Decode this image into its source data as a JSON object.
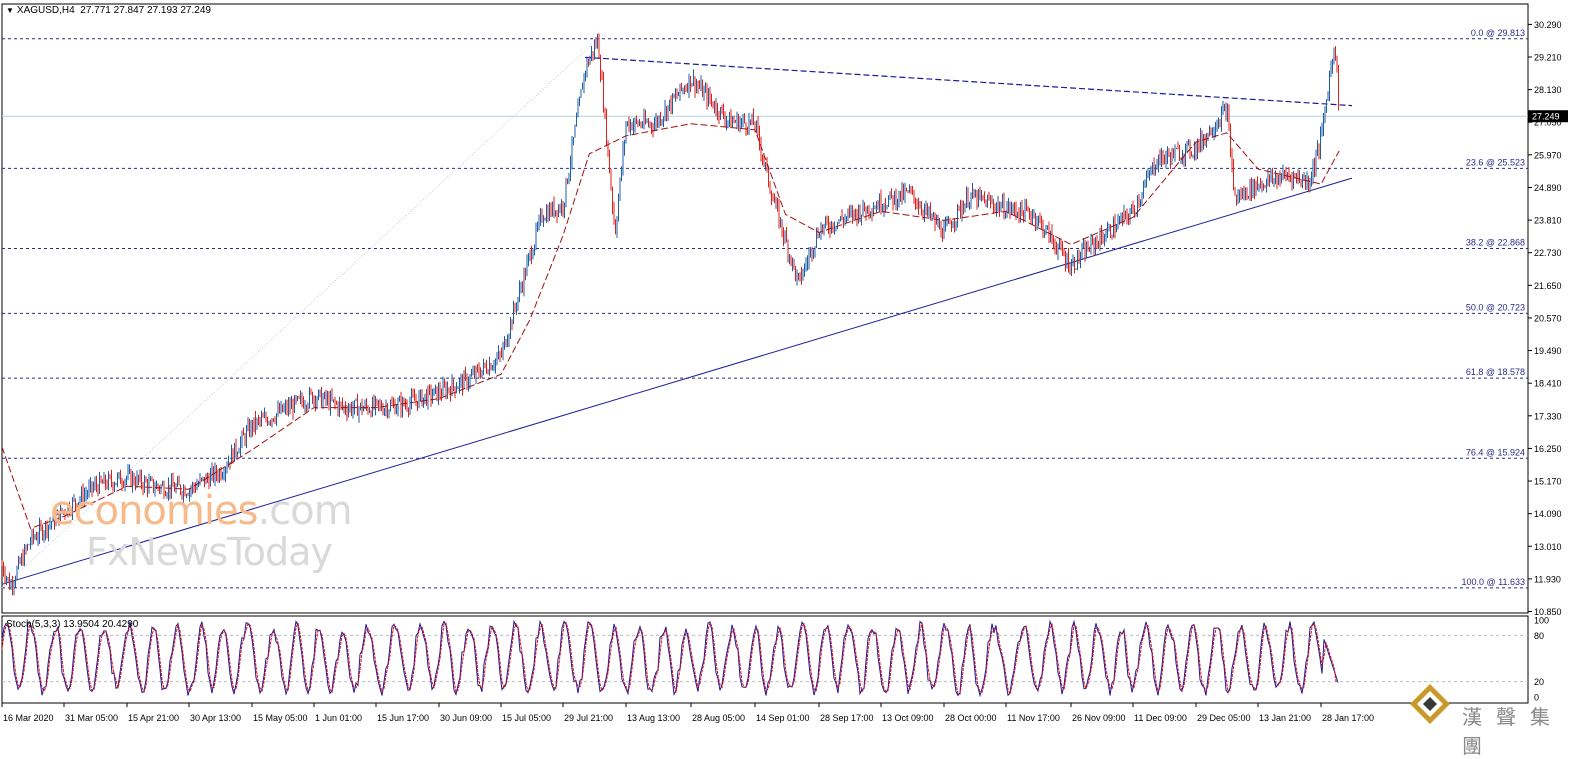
{
  "header": {
    "symbol": "XAGUSD,H4",
    "ohlc": "27.771 27.847 27.193 27.249",
    "last_price_label": "27.249"
  },
  "indicator": {
    "label": "Stoch(5,3,3) 13.9504 20.4290"
  },
  "watermark": {
    "line1_highlight": "economies",
    "line1_rest": ".com",
    "line2": "FxNewsToday"
  },
  "logo": {
    "text": "漢聲集團"
  },
  "colors": {
    "up_candle": "#1f5fa8",
    "down_candle": "#e0201b",
    "moving_average": "#a01010",
    "trendline": "#1a1a9a",
    "fib_line": "#2a2a8a",
    "stoch_main": "#1a1a9a",
    "stoch_signal": "#d0101a",
    "current_price_line": "#b8cfe0"
  },
  "chart_data": {
    "type": "candlestick",
    "symbol": "XAGUSD",
    "timeframe": "H4",
    "y_ticks": [
      "30.290",
      "29.210",
      "28.130",
      "27.050",
      "25.970",
      "24.890",
      "23.810",
      "22.730",
      "21.650",
      "20.570",
      "19.490",
      "18.410",
      "17.330",
      "16.250",
      "15.170",
      "14.090",
      "13.010",
      "11.930",
      "10.850"
    ],
    "ylim": [
      10.8,
      30.7
    ],
    "x_ticks": [
      "16 Mar 2020",
      "31 Mar 05:00",
      "15 Apr 21:00",
      "30 Apr 13:00",
      "15 May 05:00",
      "1 Jun 01:00",
      "15 Jun 17:00",
      "30 Jun 09:00",
      "15 Jul 05:00",
      "29 Jul 21:00",
      "13 Aug 13:00",
      "28 Aug 05:00",
      "14 Sep 01:00",
      "28 Sep 17:00",
      "13 Oct 09:00",
      "28 Oct 00:00",
      "11 Nov 17:00",
      "26 Nov 09:00",
      "11 Dec 09:00",
      "29 Dec 05:00",
      "13 Jan 21:00",
      "28 Jan 17:00"
    ],
    "current_price": 27.249,
    "fibonacci_levels": [
      {
        "label": "0.0 @ 29.813",
        "value": 29.813
      },
      {
        "label": "23.6 @ 25.523",
        "value": 25.523
      },
      {
        "label": "38.2 @ 22.868",
        "value": 22.868
      },
      {
        "label": "50.0 @ 20.723",
        "value": 20.723
      },
      {
        "label": "61.8 @ 18.578",
        "value": 18.578
      },
      {
        "label": "76.4 @ 15.924",
        "value": 15.924
      },
      {
        "label": "100.0 @ 11.633",
        "value": 11.633
      }
    ],
    "price_path": [
      {
        "t": "16 Mar 2020",
        "v": 12.4
      },
      {
        "t": "18 Mar 2020",
        "v": 11.7
      },
      {
        "t": "23 Mar 2020",
        "v": 13.2
      },
      {
        "t": "31 Mar 05:00",
        "v": 14.2
      },
      {
        "t": "8 Apr 2020",
        "v": 15.0
      },
      {
        "t": "15 Apr 21:00",
        "v": 15.3
      },
      {
        "t": "22 Apr 2020",
        "v": 15.0
      },
      {
        "t": "30 Apr 13:00",
        "v": 14.9
      },
      {
        "t": "8 May 2020",
        "v": 15.5
      },
      {
        "t": "15 May 05:00",
        "v": 17.0
      },
      {
        "t": "22 May 2020",
        "v": 17.4
      },
      {
        "t": "1 Jun 01:00",
        "v": 18.0
      },
      {
        "t": "8 Jun 2020",
        "v": 17.6
      },
      {
        "t": "15 Jun 17:00",
        "v": 17.6
      },
      {
        "t": "22 Jun 2020",
        "v": 17.7
      },
      {
        "t": "30 Jun 09:00",
        "v": 18.1
      },
      {
        "t": "7 Jul 2020",
        "v": 18.5
      },
      {
        "t": "15 Jul 05:00",
        "v": 19.3
      },
      {
        "t": "22 Jul 2020",
        "v": 22.6
      },
      {
        "t": "25 Jul 2020",
        "v": 24.0
      },
      {
        "t": "29 Jul 21:00",
        "v": 24.3
      },
      {
        "t": "4 Aug 2020",
        "v": 28.8
      },
      {
        "t": "7 Aug 2020",
        "v": 29.8
      },
      {
        "t": "11 Aug 2020",
        "v": 23.4
      },
      {
        "t": "13 Aug 13:00",
        "v": 27.0
      },
      {
        "t": "20 Aug 2020",
        "v": 27.0
      },
      {
        "t": "28 Aug 05:00",
        "v": 28.5
      },
      {
        "t": "7 Sep 2020",
        "v": 27.1
      },
      {
        "t": "14 Sep 01:00",
        "v": 27.0
      },
      {
        "t": "18 Sep 2020",
        "v": 24.6
      },
      {
        "t": "24 Sep 2020",
        "v": 21.7
      },
      {
        "t": "28 Sep 17:00",
        "v": 23.5
      },
      {
        "t": "13 Oct 09:00",
        "v": 24.4
      },
      {
        "t": "20 Oct 2020",
        "v": 24.7
      },
      {
        "t": "28 Oct 00:00",
        "v": 23.4
      },
      {
        "t": "3 Nov 2020",
        "v": 24.6
      },
      {
        "t": "11 Nov 17:00",
        "v": 24.2
      },
      {
        "t": "18 Nov 2020",
        "v": 24.0
      },
      {
        "t": "26 Nov 09:00",
        "v": 22.3
      },
      {
        "t": "30 Nov 2020",
        "v": 22.8
      },
      {
        "t": "11 Dec 09:00",
        "v": 24.1
      },
      {
        "t": "18 Dec 2020",
        "v": 25.8
      },
      {
        "t": "29 Dec 05:00",
        "v": 26.2
      },
      {
        "t": "6 Jan 2021",
        "v": 27.5
      },
      {
        "t": "8 Jan 2021",
        "v": 24.5
      },
      {
        "t": "13 Jan 21:00",
        "v": 25.0
      },
      {
        "t": "21 Jan 2021",
        "v": 25.3
      },
      {
        "t": "26 Jan 2021",
        "v": 25.1
      },
      {
        "t": "28 Jan 17:00",
        "v": 26.5
      },
      {
        "t": "1 Feb 2021",
        "v": 29.8
      },
      {
        "t": "2 Feb 2021",
        "v": 27.249
      }
    ],
    "moving_average_path": [
      {
        "t": "16 Mar 2020",
        "v": 16.3
      },
      {
        "t": "23 Mar 2020",
        "v": 13.6
      },
      {
        "t": "31 Mar 05:00",
        "v": 14.0
      },
      {
        "t": "15 Apr 21:00",
        "v": 15.0
      },
      {
        "t": "30 Apr 13:00",
        "v": 14.9
      },
      {
        "t": "15 May 05:00",
        "v": 16.2
      },
      {
        "t": "1 Jun 01:00",
        "v": 17.6
      },
      {
        "t": "15 Jun 17:00",
        "v": 17.6
      },
      {
        "t": "30 Jun 09:00",
        "v": 17.9
      },
      {
        "t": "15 Jul 05:00",
        "v": 18.7
      },
      {
        "t": "22 Jul 2020",
        "v": 20.5
      },
      {
        "t": "29 Jul 21:00",
        "v": 23.3
      },
      {
        "t": "5 Aug 2020",
        "v": 26.0
      },
      {
        "t": "13 Aug 13:00",
        "v": 26.6
      },
      {
        "t": "28 Aug 05:00",
        "v": 27.0
      },
      {
        "t": "14 Sep 01:00",
        "v": 26.8
      },
      {
        "t": "21 Sep 2020",
        "v": 24.0
      },
      {
        "t": "28 Sep 17:00",
        "v": 23.4
      },
      {
        "t": "13 Oct 09:00",
        "v": 24.1
      },
      {
        "t": "28 Oct 00:00",
        "v": 23.8
      },
      {
        "t": "11 Nov 17:00",
        "v": 24.1
      },
      {
        "t": "26 Nov 09:00",
        "v": 23.0
      },
      {
        "t": "11 Dec 09:00",
        "v": 23.9
      },
      {
        "t": "29 Dec 05:00",
        "v": 26.4
      },
      {
        "t": "6 Jan 2021",
        "v": 26.7
      },
      {
        "t": "13 Jan 21:00",
        "v": 25.5
      },
      {
        "t": "28 Jan 17:00",
        "v": 25.0
      },
      {
        "t": "2 Feb 2021",
        "v": 26.1
      }
    ],
    "trendlines": [
      {
        "style": "solid",
        "from": {
          "t": "16 Mar 2020",
          "v": 11.75
        },
        "to": {
          "t": "5 Feb 2021",
          "v": 25.2
        }
      },
      {
        "style": "dashed",
        "from": {
          "t": "4 Aug 2020",
          "v": 29.2
        },
        "to": {
          "t": "5 Feb 2021",
          "v": 27.6
        }
      },
      {
        "style": "dotted",
        "from": {
          "t": "16 Mar 2020",
          "v": 11.633
        },
        "to": {
          "t": "7 Aug 2020",
          "v": 29.813
        }
      }
    ],
    "stochastic": {
      "params": "5,3,3",
      "main": 13.9504,
      "signal": 20.429,
      "levels": [
        80,
        20
      ],
      "ylim": [
        0,
        100
      ],
      "y_ticks": [
        "100",
        "80",
        "20",
        "0"
      ]
    }
  }
}
